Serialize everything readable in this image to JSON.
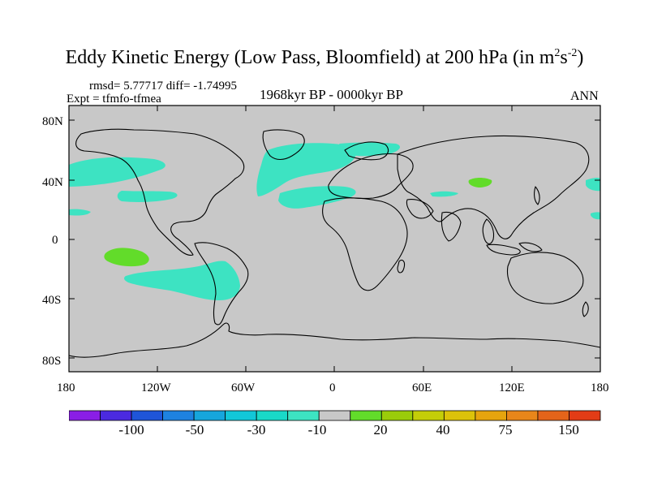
{
  "title": {
    "main": "Eddy Kinetic Energy (Low Pass, Bloomfield) at 200 hPa (in m",
    "sup1": "2",
    "s": "s",
    "sup2": "-2",
    "close": ")"
  },
  "stats": "rmsd= 5.77717 diff= -1.74995",
  "expt": "Expt = tfmfo-tfmea",
  "period": "1968kyr BP - 0000kyr BP",
  "season": "ANN",
  "axes": {
    "y_ticks": [
      "80N",
      "40N",
      "0",
      "40S",
      "80S"
    ],
    "x_ticks": [
      "180",
      "120W",
      "60W",
      "0",
      "60E",
      "120E",
      "180"
    ]
  },
  "colorbar": {
    "colors": [
      "#8a1ee6",
      "#4b2ae0",
      "#1f55d8",
      "#1e82e0",
      "#16a6dc",
      "#12c7d8",
      "#19d9c8",
      "#3de3c2",
      "#c8c8c8",
      "#62dc2a",
      "#9acc0a",
      "#c4cd08",
      "#dcc20a",
      "#e6a40e",
      "#e8861a",
      "#e4641a",
      "#e23c16"
    ],
    "labels": [
      "-100",
      "-50",
      "-30",
      "-10",
      "20",
      "40",
      "75",
      "150"
    ]
  },
  "legend_colors": {
    "cyan": "#3de3c2",
    "green": "#62dc2a",
    "land_sea": "#c8c8c8"
  }
}
